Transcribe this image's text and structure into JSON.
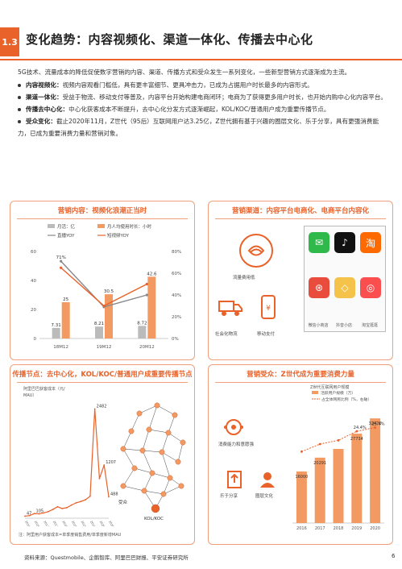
{
  "header": {
    "section_no": "1.3",
    "title": "变化趋势：内容视频化、渠道一体化、传播去中心化",
    "accent": "#e8622a"
  },
  "intro": "5G技术、流量成本的降低促使数字营销的内容、渠道、传播方式和受众发生一系列变化，一些新型营销方式逐渐成为主流。",
  "bullets": [
    {
      "head": "内容视频化：",
      "text": "视频内容观看门槛低，具有更丰富细节、更具冲击力，已成为占据用户时长最多的内容形式。"
    },
    {
      "head": "渠道一体化：",
      "text": "受益于物流、移动支付等普及，内容平台开始构建电商闭环；电商为了获得更多用户时长，也开始内购中心化内容平台。"
    },
    {
      "head": "传播去中心化：",
      "text": "中心化获客成本不断提升，去中心化分发方式逐渐崛起，KOL/KOC/普通用户成为重要传播节点。"
    },
    {
      "head": "受众变化：",
      "text": "截止2020年11月，Z世代（95后）互联网用户达3.25亿，Z世代拥有基于兴趣的圈层文化、乐于分享，具有更强消费能力，已成为重要消费力量和营销对象。"
    }
  ],
  "panel1": {
    "title": "营销内容：视频化浪潮正当时",
    "legend": [
      "月活：亿",
      "月人均使用时长：小时",
      "直播YOY",
      "短视频YOY"
    ],
    "chart_data": {
      "type": "bar",
      "categories": [
        "18M12",
        "19M12",
        "20M12"
      ],
      "series": [
        {
          "name": "月活：亿",
          "values": [
            7.31,
            8.21,
            8.72
          ]
        },
        {
          "name": "月人均使用时长：小时",
          "values": [
            25.0,
            30.5,
            42.6
          ]
        }
      ],
      "lines": [
        {
          "name": "直播YOY",
          "values": [
            71,
            29,
            40
          ]
        },
        {
          "name": "短视频YOY",
          "values": [
            65,
            30,
            50
          ]
        }
      ],
      "left_ticks": [
        "0",
        "20",
        "40",
        "60"
      ],
      "right_ticks": [
        "0%",
        "20%",
        "40%",
        "60%",
        "80%"
      ],
      "point_labels": [
        "71%",
        "7.31",
        "30.5",
        "8.21",
        "42.6",
        "8.72",
        "7.31"
      ]
    }
  },
  "panel2": {
    "title": "营销渠道：内容平台电商化、电商平台内容化",
    "labels": {
      "traffic": "流量费用低",
      "logistics": "社会化物流",
      "payment": "移动支付"
    },
    "apps": [
      {
        "name": "微信小商店",
        "color": "#2fb94a",
        "glyph": "✉"
      },
      {
        "name": "抖音小店",
        "color": "#111111",
        "glyph": "♪"
      },
      {
        "name": "淘宝",
        "color": "#ff6a00",
        "glyph": "淘"
      },
      {
        "name": "",
        "color": "#e94b3c",
        "glyph": "⊛"
      },
      {
        "name": "",
        "color": "#f5c24a",
        "glyph": "◇"
      },
      {
        "name": "",
        "color": "#fb4f4f",
        "glyph": "◎"
      }
    ],
    "app_labels": [
      "微信小商店",
      "抖音小店",
      "淘宝逛逛"
    ]
  },
  "panel3": {
    "title": "传播节点：去中心化，KOL/KOC/普通用户成重要传播节点",
    "subtitle": "阿里巴巴获客成本（元/",
    "unit": "MAU）",
    "chart_data": {
      "type": "line",
      "x": [
        "2016Q1",
        "2016Q2",
        "2016Q3",
        "2016Q4",
        "2017Q1",
        "2017Q2",
        "2017Q3",
        "2017Q4",
        "2018Q1",
        "2018Q2",
        "2018Q3",
        "2018Q4",
        "2019Q1",
        "2019Q2",
        "2019Q3",
        "2019Q4",
        "2020Q1",
        "2020Q2",
        "2020Q3"
      ],
      "values": [
        47,
        60,
        105,
        100,
        120,
        150,
        200,
        260,
        220,
        240,
        300,
        350,
        380,
        420,
        500,
        2482,
        900,
        1207,
        488
      ],
      "labels_shown": [
        "47",
        "105",
        "2482",
        "1207",
        "488"
      ]
    },
    "network_labels": [
      "受众",
      "KOL/KOC"
    ],
    "note": "注：阿里用户获客成本=单季度销售费用/单季度新增MAU"
  },
  "panel4": {
    "title": "营销受众：Z世代成为重要消费力量",
    "subtitle": "Z世代互联网用户规模",
    "legend": [
      "活跃用户规模（万）",
      "占全体网民比例（%，右轴）"
    ],
    "labels": [
      "消费能力和意愿强",
      "圈层文化",
      "乐于分享"
    ],
    "chart_data": {
      "type": "bar",
      "categories": [
        "2016",
        "2017",
        "2018",
        "2019",
        "2020"
      ],
      "values": [
        16000,
        20291,
        23000,
        27734,
        32470
      ],
      "value_labels": [
        "16000",
        "20291",
        "",
        "27734",
        "32470"
      ],
      "ratio": [
        19.0,
        21.0,
        22.0,
        24.4,
        25.4
      ],
      "ratio_labels": [
        "",
        "",
        "",
        "24.4%",
        "25.4%"
      ],
      "ylim": [
        0,
        35000
      ]
    }
  },
  "footer": {
    "source": "资料来源：Questmobile、企鹅智库、阿里巴巴财报、平安证券研究所",
    "page": "6"
  }
}
